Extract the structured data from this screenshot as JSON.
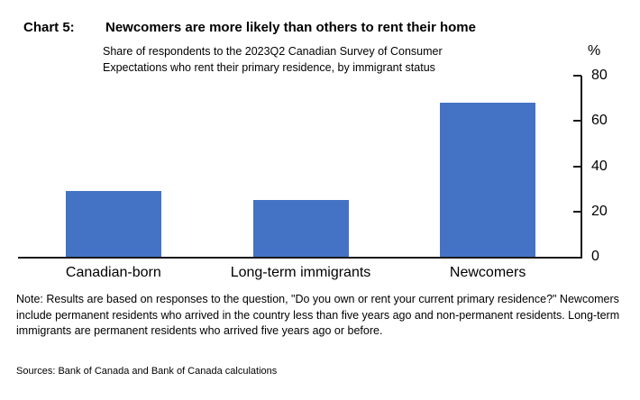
{
  "header": {
    "chart_label": "Chart 5:",
    "title": "Newcomers are more likely than others to rent their home",
    "subtitle_line1": "Share of respondents to the 2023Q2 Canadian Survey of Consumer",
    "subtitle_line2": "Expectations who rent their primary residence, by immigrant status"
  },
  "chart_data": {
    "type": "bar",
    "categories": [
      "Canadian-born",
      "Long-term immigrants",
      "Newcomers"
    ],
    "values": [
      29,
      25,
      68
    ],
    "title": "Newcomers are more likely than others to rent their home",
    "subtitle": "Share of respondents to the 2023Q2 Canadian Survey of Consumer Expectations who rent their primary residence, by immigrant status",
    "unit_label": "%",
    "xlabel": "",
    "ylabel": "%",
    "ylim": [
      0,
      80
    ],
    "yticks": [
      0,
      20,
      40,
      60,
      80
    ],
    "axis_side": "right",
    "grid": false,
    "legend": "none",
    "bar_color": "#4472C4"
  },
  "note": "Note: Results are based on responses to the question, \"Do you own or rent your current primary residence?\" Newcomers include permanent residents who arrived in the country less than five years ago and non-permanent residents. Long-term immigrants are permanent residents who arrived five years ago or before.",
  "sources": "Sources: Bank of Canada and Bank of Canada calculations",
  "colors": {
    "bar": "#4472C4",
    "axis": "#1a1a1a",
    "text": "#000000",
    "background": "#ffffff"
  }
}
